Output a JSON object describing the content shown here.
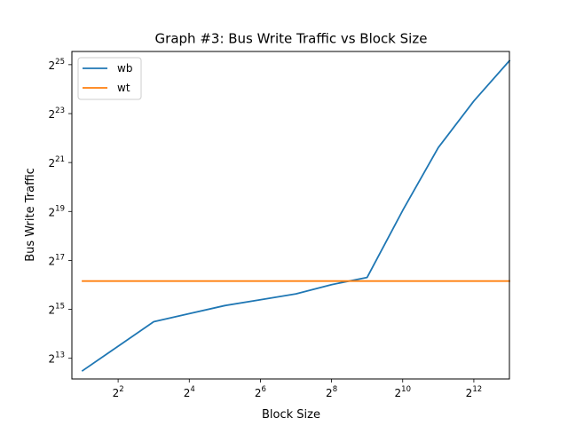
{
  "chart_data": {
    "type": "line",
    "title": "Graph #3: Bus Write Traffic vs Block Size",
    "xlabel": "Block Size",
    "ylabel": "Bus Write Traffic",
    "x_scale": "log2",
    "y_scale": "log2",
    "xlim": [
      1.6245,
      8192
    ],
    "ylim": [
      4561,
      48758375
    ],
    "x_ticks": [
      {
        "value": 4,
        "base": "2",
        "exp": "2"
      },
      {
        "value": 16,
        "base": "2",
        "exp": "4"
      },
      {
        "value": 64,
        "base": "2",
        "exp": "6"
      },
      {
        "value": 256,
        "base": "2",
        "exp": "8"
      },
      {
        "value": 1024,
        "base": "2",
        "exp": "10"
      },
      {
        "value": 4096,
        "base": "2",
        "exp": "12"
      }
    ],
    "y_ticks": [
      {
        "value": 8192,
        "base": "2",
        "exp": "13"
      },
      {
        "value": 32768,
        "base": "2",
        "exp": "15"
      },
      {
        "value": 131072,
        "base": "2",
        "exp": "17"
      },
      {
        "value": 524288,
        "base": "2",
        "exp": "19"
      },
      {
        "value": 2097152,
        "base": "2",
        "exp": "21"
      },
      {
        "value": 8388608,
        "base": "2",
        "exp": "23"
      },
      {
        "value": 33554432,
        "base": "2",
        "exp": "25"
      }
    ],
    "x": [
      2,
      4,
      8,
      16,
      32,
      64,
      128,
      256,
      512,
      1024,
      2048,
      4096,
      8192
    ],
    "series": [
      {
        "name": "wb",
        "color": "#1f77b4",
        "values": [
          5765,
          11531,
          23062,
          29000,
          36472,
          43000,
          50800,
          66000,
          81000,
          540000,
          3200000,
          11980000,
          37500000
        ]
      },
      {
        "name": "wt",
        "color": "#ff7f0e",
        "values": [
          73000,
          73000,
          73000,
          73000,
          73000,
          73000,
          73000,
          73000,
          73000,
          73000,
          73000,
          73000,
          73000
        ]
      }
    ],
    "legend_position": "top-left",
    "grid": false
  }
}
